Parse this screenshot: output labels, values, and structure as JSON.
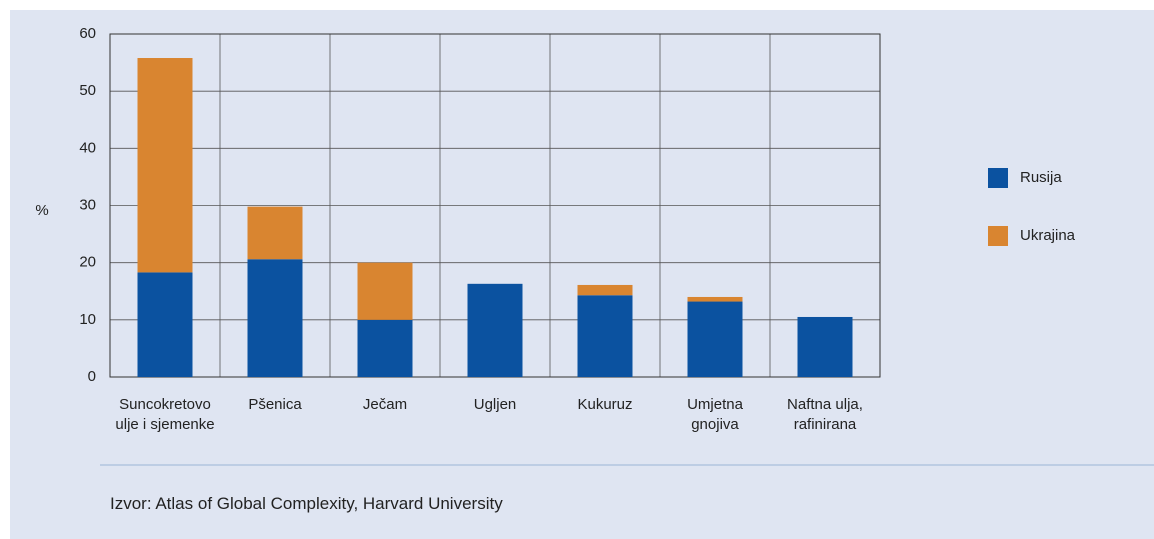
{
  "chart_data": {
    "type": "stacked_bar",
    "y_label": "%",
    "categories": [
      "Suncokretovo\nulje i sjemenke",
      "Pšenica",
      "Ječam",
      "Ugljen",
      "Kukuruz",
      "Umjetna\ngnojiva",
      "Naftna ulja,\nrafinirana"
    ],
    "series": [
      {
        "name": "Rusija",
        "color": "#0b52a0",
        "values": [
          18.3,
          20.6,
          10,
          16.3,
          14.3,
          13.2,
          10.5
        ]
      },
      {
        "name": "Ukrajina",
        "color": "#d98530",
        "values": [
          37.5,
          9.2,
          10,
          0,
          1.8,
          0.8,
          0
        ]
      }
    ],
    "ylim": [
      0,
      60
    ],
    "yticks": [
      0,
      10,
      20,
      30,
      40,
      50,
      60
    ],
    "grid": true,
    "legend": "right",
    "source": "Izvor: Atlas of Global Complexity, Harvard University"
  }
}
